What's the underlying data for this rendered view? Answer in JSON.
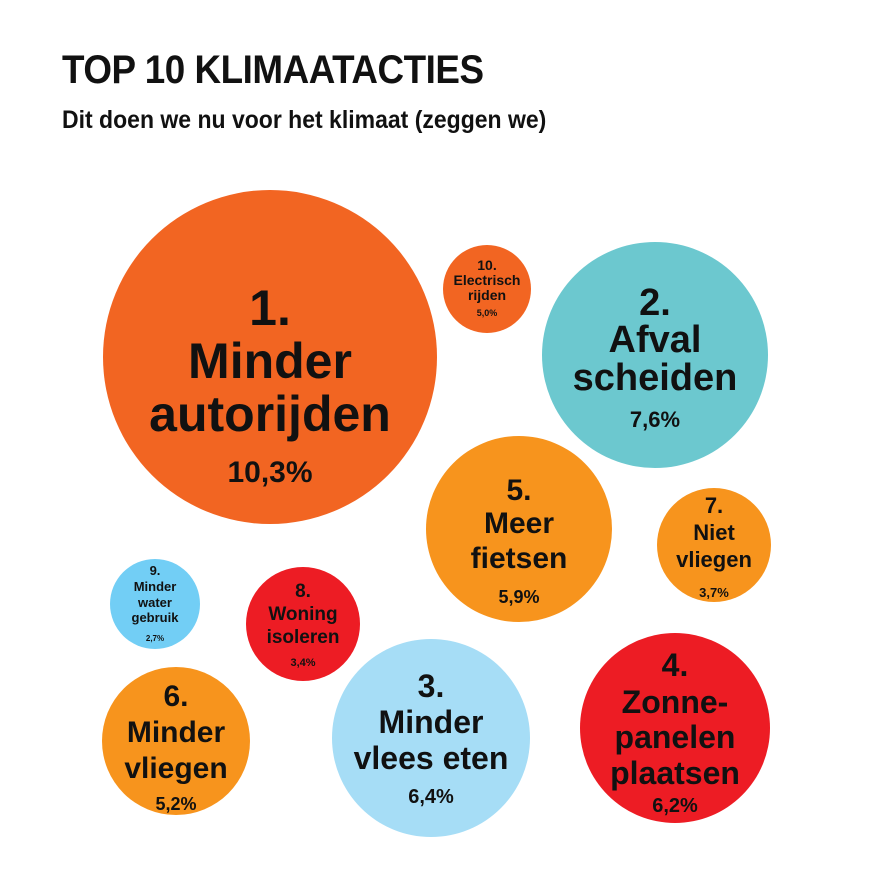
{
  "chart_data": {
    "type": "bubble",
    "title": "TOP 10 KLIMAATACTIES",
    "subtitle": "Dit doen we nu voor het klimaat (zeggen we)",
    "items": [
      {
        "rank": "1.",
        "lines": [
          "Minder",
          "autorijden"
        ],
        "value_label": "10,3%",
        "value": 10.3,
        "color": "#f26522"
      },
      {
        "rank": "2.",
        "lines": [
          "Afval",
          "scheiden"
        ],
        "value_label": "7,6%",
        "value": 7.6,
        "color": "#6cc8cf"
      },
      {
        "rank": "3.",
        "lines": [
          "Minder",
          "vlees eten"
        ],
        "value_label": "6,4%",
        "value": 6.4,
        "color": "#a6ddf6"
      },
      {
        "rank": "4.",
        "lines": [
          "Zonne-",
          "panelen",
          "plaatsen"
        ],
        "value_label": "6,2%",
        "value": 6.2,
        "color": "#ed1c24"
      },
      {
        "rank": "5.",
        "lines": [
          "Meer",
          "fietsen"
        ],
        "value_label": "5,9%",
        "value": 5.9,
        "color": "#f7941d"
      },
      {
        "rank": "6.",
        "lines": [
          "Minder",
          "vliegen"
        ],
        "value_label": "5,2%",
        "value": 5.2,
        "color": "#f7941d"
      },
      {
        "rank": "7.",
        "lines": [
          "Niet",
          "vliegen"
        ],
        "value_label": "3,7%",
        "value": 3.7,
        "color": "#f7941d"
      },
      {
        "rank": "8.",
        "lines": [
          "Woning",
          "isoleren"
        ],
        "value_label": "3,4%",
        "value": 3.4,
        "color": "#ed1c24"
      },
      {
        "rank": "9.",
        "lines": [
          "Minder",
          "water",
          "gebruik"
        ],
        "value_label": "2,7%",
        "value": 2.7,
        "color": "#72cef5"
      },
      {
        "rank": "10.",
        "lines": [
          "Electrisch",
          "rijden"
        ],
        "value_label": "5,0%",
        "value": 5.0,
        "color": "#f26522"
      }
    ]
  }
}
